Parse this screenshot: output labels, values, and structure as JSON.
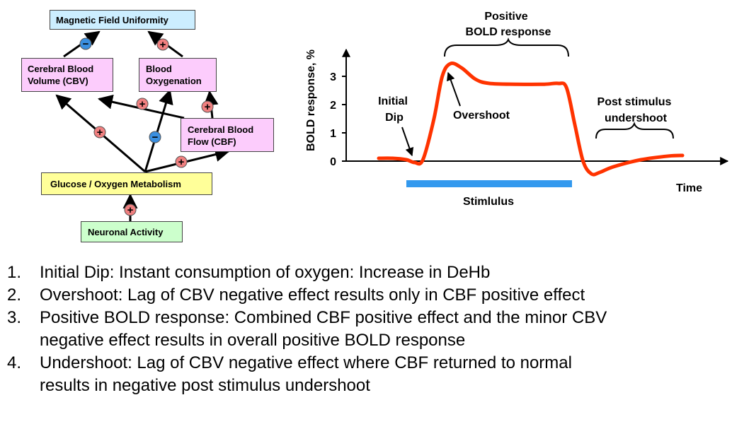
{
  "diagram": {
    "boxes": {
      "magnetic_field": "Magnetic Field Uniformity",
      "cbv_line1": "Cerebral Blood",
      "cbv_line2": "Volume (CBV)",
      "oxygenation_line1": "Blood",
      "oxygenation_line2": "Oxygenation",
      "cbf_line1": "Cerebral Blood",
      "cbf_line2": "Flow (CBF)",
      "metabolism": "Glucose / Oxygen Metabolism",
      "neuronal": "Neuronal Activity"
    },
    "signs": {
      "plus": "+",
      "minus": "−"
    },
    "colors": {
      "plus": "#f08080",
      "minus": "#3a8fe0"
    }
  },
  "chart_data": {
    "type": "line",
    "ylabel": "BOLD response, %",
    "xlabel": "Time",
    "yticks": [
      "0",
      "1",
      "2",
      "3"
    ],
    "ylim": [
      -0.6,
      4.0
    ],
    "series": [
      {
        "color": "#ff3300",
        "x": [
          0,
          0.5,
          1.0,
          1.3,
          1.6,
          2.0,
          2.3,
          2.6,
          3.0,
          3.5,
          4.0,
          5.0,
          6.0,
          6.5,
          6.8,
          7.1,
          7.4,
          7.7,
          8.0,
          8.5,
          9.5,
          10.5,
          11.0
        ],
        "y": [
          0.1,
          0.1,
          0.05,
          -0.05,
          0.05,
          1.5,
          3.0,
          3.45,
          3.3,
          2.9,
          2.75,
          2.72,
          2.72,
          2.75,
          2.6,
          1.3,
          0.0,
          -0.45,
          -0.4,
          -0.2,
          0.05,
          0.18,
          0.2
        ]
      }
    ],
    "stimulus_bar": [
      1.0,
      7.0
    ],
    "stimulus_color": "#3399ee",
    "annotations": {
      "positive_line1": "Positive",
      "positive_line2": "BOLD response",
      "initial_line1": "Initial",
      "initial_line2": "Dip",
      "overshoot": "Overshoot",
      "post_line1": "Post stimulus",
      "post_line2": "undershoot",
      "stimulus": "Stimlulus"
    }
  },
  "notes": [
    {
      "num": "1.",
      "lines": [
        "Initial Dip: Instant consumption of oxygen: Increase in DeHb"
      ]
    },
    {
      "num": "2.",
      "lines": [
        "Overshoot: Lag of CBV negative effect results only in CBF positive effect"
      ]
    },
    {
      "num": "3.",
      "lines": [
        "Positive BOLD response: Combined CBF positive effect and the minor CBV",
        "negative effect results in overall positive BOLD response"
      ]
    },
    {
      "num": "4.",
      "lines": [
        "Undershoot: Lag of CBV negative effect where CBF returned to normal",
        "results in negative post stimulus undershoot"
      ]
    }
  ]
}
